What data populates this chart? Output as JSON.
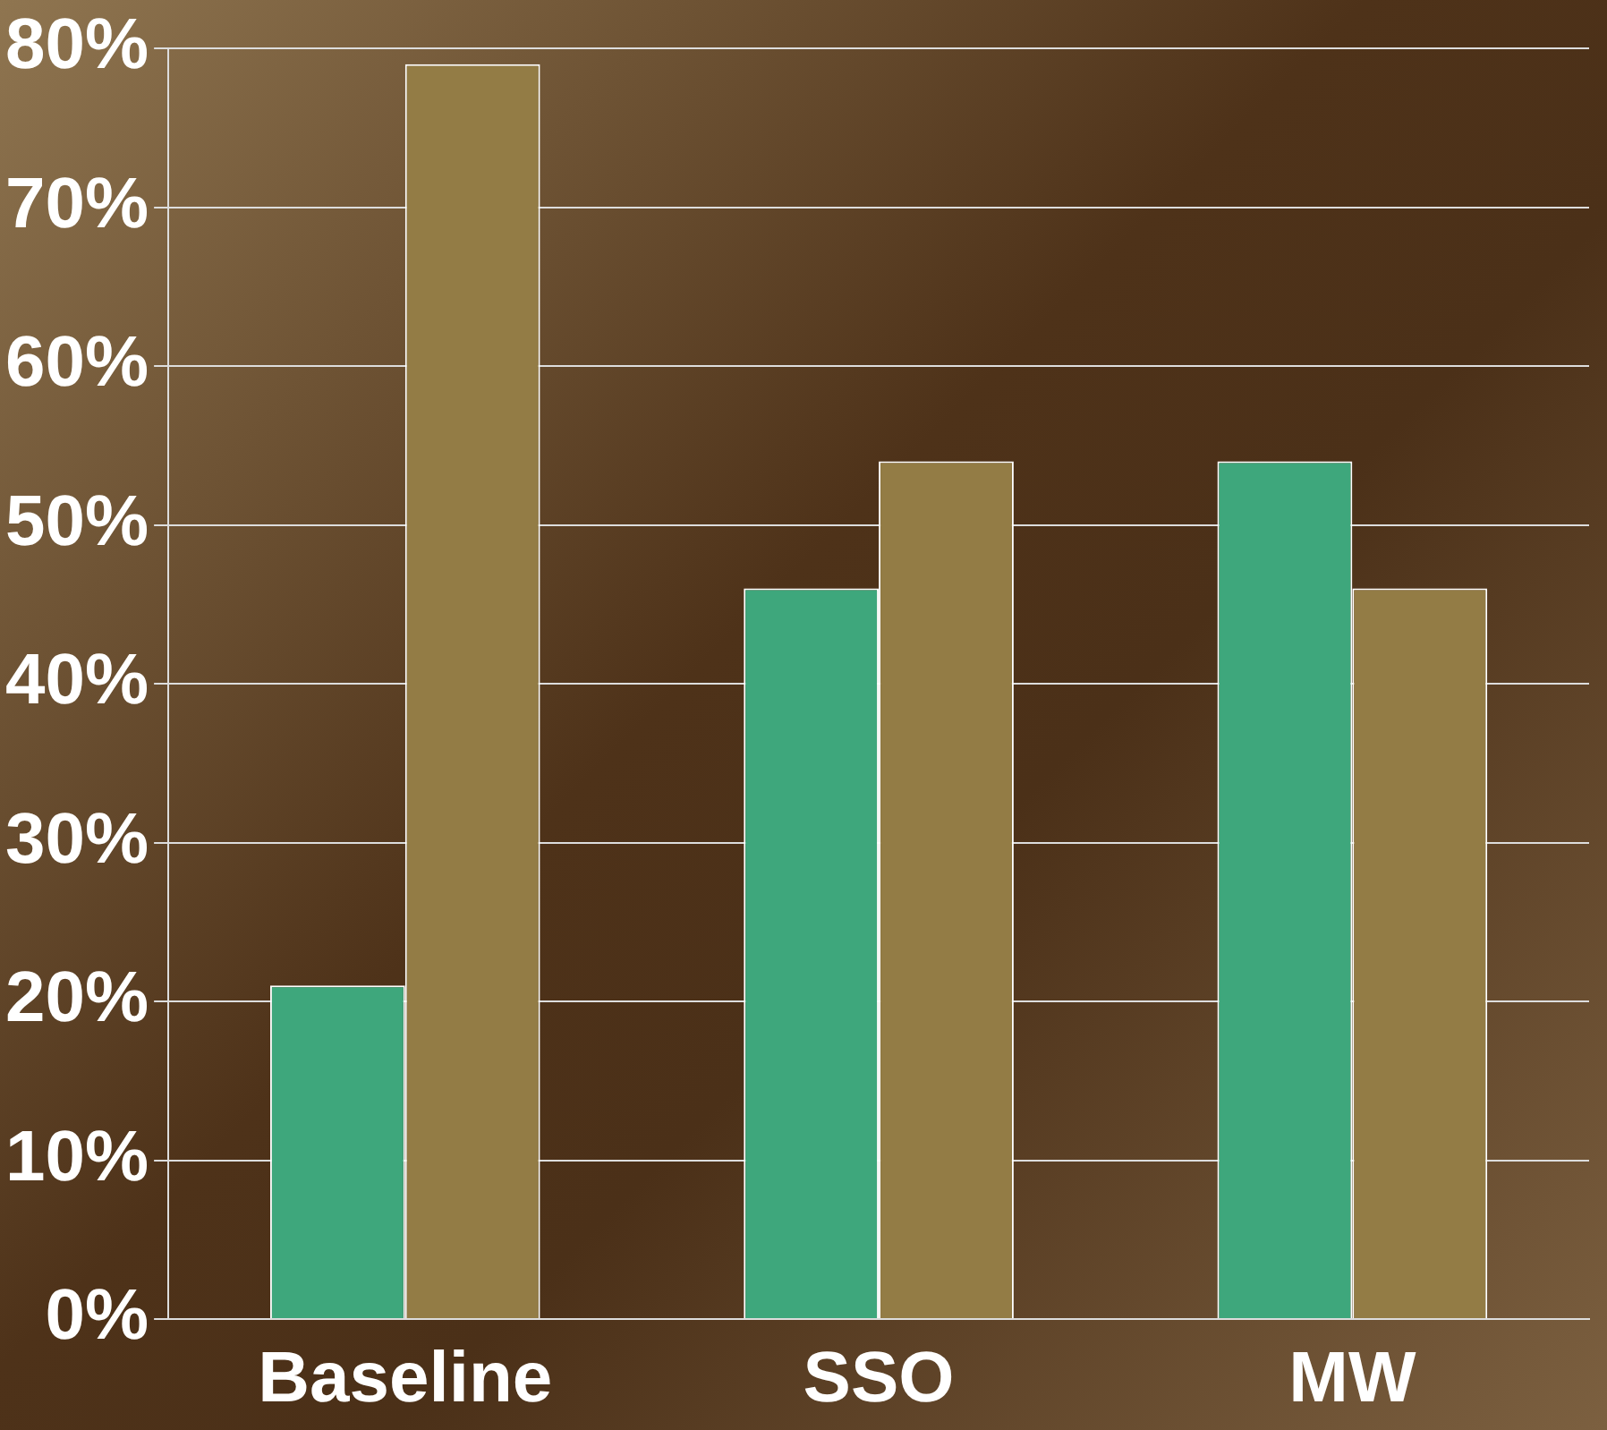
{
  "chart_data": {
    "type": "bar",
    "categories": [
      "Baseline",
      "SSO",
      "MW"
    ],
    "series": [
      {
        "color": "#3ea77c",
        "values": [
          21,
          46,
          54
        ]
      },
      {
        "color": "#937c45",
        "values": [
          79,
          54,
          46
        ]
      }
    ],
    "ylim": [
      0,
      80
    ],
    "yticks": [
      {
        "value": 0,
        "label": "0%"
      },
      {
        "value": 10,
        "label": "10%"
      },
      {
        "value": 20,
        "label": "20%"
      },
      {
        "value": 30,
        "label": "30%"
      },
      {
        "value": 40,
        "label": "40%"
      },
      {
        "value": 50,
        "label": "50%"
      },
      {
        "value": 60,
        "label": "60%"
      },
      {
        "value": 70,
        "label": "70%"
      },
      {
        "value": 80,
        "label": "80%"
      }
    ],
    "grid": "y"
  }
}
